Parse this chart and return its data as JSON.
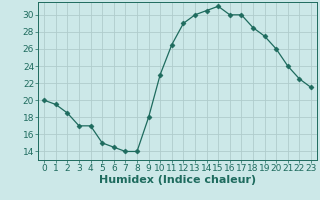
{
  "x": [
    0,
    1,
    2,
    3,
    4,
    5,
    6,
    7,
    8,
    9,
    10,
    11,
    12,
    13,
    14,
    15,
    16,
    17,
    18,
    19,
    20,
    21,
    22,
    23
  ],
  "y": [
    20,
    19.5,
    18.5,
    17,
    17,
    15,
    14.5,
    14,
    14,
    18,
    23,
    26.5,
    29,
    30,
    30.5,
    31,
    30,
    30,
    28.5,
    27.5,
    26,
    24,
    22.5,
    21.5
  ],
  "line_color": "#1e6b5e",
  "marker": "D",
  "marker_size": 2.5,
  "bg_color": "#cce8e8",
  "grid_color": "#b0cccc",
  "tick_color": "#1e6b5e",
  "xlabel": "Humidex (Indice chaleur)",
  "xlabel_fontsize": 8,
  "ylim": [
    13,
    31.5
  ],
  "xlim": [
    -0.5,
    23.5
  ],
  "yticks": [
    14,
    16,
    18,
    20,
    22,
    24,
    26,
    28,
    30
  ],
  "xticks": [
    0,
    1,
    2,
    3,
    4,
    5,
    6,
    7,
    8,
    9,
    10,
    11,
    12,
    13,
    14,
    15,
    16,
    17,
    18,
    19,
    20,
    21,
    22,
    23
  ],
  "tick_fontsize": 6.5
}
